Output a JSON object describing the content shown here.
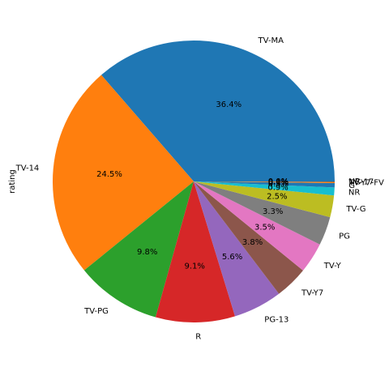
{
  "chart_data": {
    "type": "pie",
    "ylabel": "rating",
    "start_angle_deg": 0,
    "direction": "counterclockwise",
    "slices": [
      {
        "label": "TV-MA",
        "pct_label": "36.4%",
        "value": 36.4,
        "color": "#1f77b4"
      },
      {
        "label": "TV-14",
        "pct_label": "24.5%",
        "value": 24.5,
        "color": "#ff7f0e"
      },
      {
        "label": "TV-PG",
        "pct_label": "9.8%",
        "value": 9.8,
        "color": "#2ca02c"
      },
      {
        "label": "R",
        "pct_label": "9.1%",
        "value": 9.1,
        "color": "#d62728"
      },
      {
        "label": "PG-13",
        "pct_label": "5.6%",
        "value": 5.6,
        "color": "#9467bd"
      },
      {
        "label": "TV-Y7",
        "pct_label": "3.8%",
        "value": 3.8,
        "color": "#8c564b"
      },
      {
        "label": "TV-Y",
        "pct_label": "3.5%",
        "value": 3.5,
        "color": "#e377c2"
      },
      {
        "label": "PG",
        "pct_label": "3.3%",
        "value": 3.3,
        "color": "#7f7f7f"
      },
      {
        "label": "TV-G",
        "pct_label": "2.5%",
        "value": 2.5,
        "color": "#bcbd22"
      },
      {
        "label": "NR",
        "pct_label": "0.9%",
        "value": 0.9,
        "color": "#17becf"
      },
      {
        "label": "G",
        "pct_label": "0.5%",
        "value": 0.5,
        "color": "#1f77b4"
      },
      {
        "label": "TV-Y7-FV",
        "pct_label": "0.1%",
        "value": 0.1,
        "color": "#ff7f0e"
      },
      {
        "label": "NC-17",
        "pct_label": "0.0%",
        "value": 0.04,
        "color": "#2ca02c"
      },
      {
        "label": "UR",
        "pct_label": "0.0%",
        "value": 0.04,
        "color": "#d62728"
      }
    ]
  }
}
